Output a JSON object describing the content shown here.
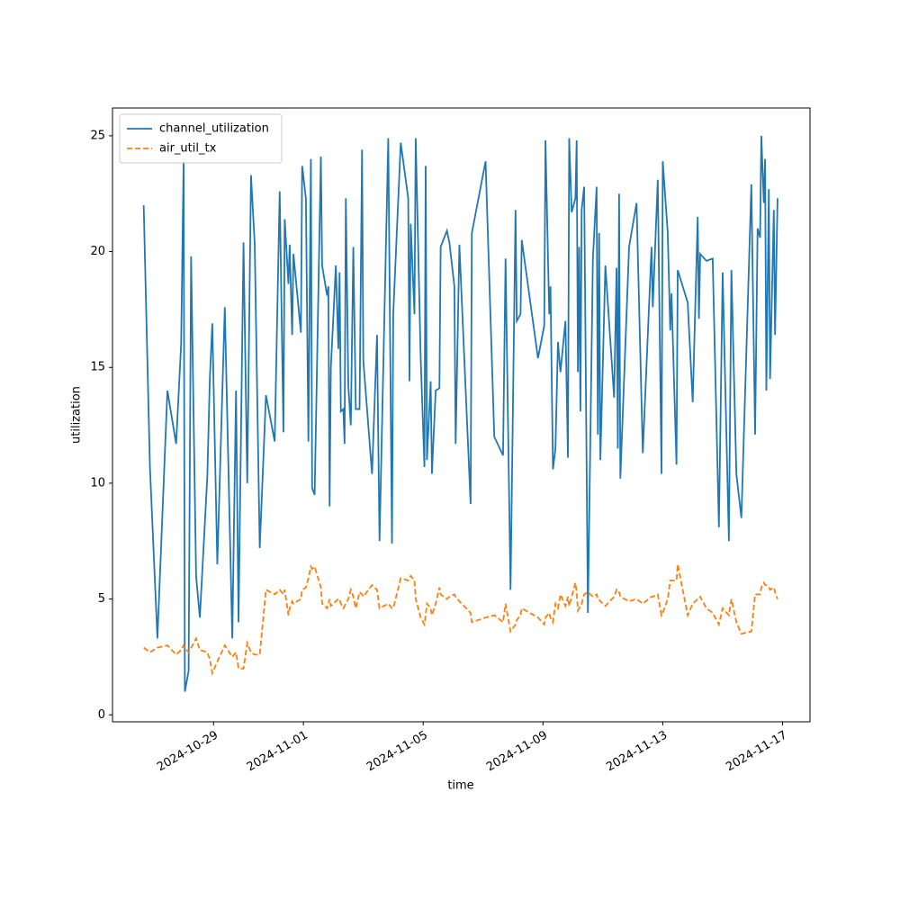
{
  "chart_data": {
    "type": "line",
    "xlabel": "time",
    "ylabel": "utilization",
    "xlim": [
      "2024-10-25T15:00",
      "2024-11-17T22:00"
    ],
    "xticks": [
      "2024-10-29",
      "2024-11-01",
      "2024-11-05",
      "2024-11-09",
      "2024-11-13",
      "2024-11-17"
    ],
    "ylim": [
      -0.3,
      26.2
    ],
    "yticks": [
      0,
      5,
      10,
      15,
      20,
      25
    ],
    "grid": false,
    "legend": "upper left",
    "series": [
      {
        "name": "channel_utilization",
        "color": "#1f77b4",
        "linestyle": "solid",
        "x": [
          "2024-10-26T16:00",
          "2024-10-26T21:00",
          "2024-10-27T03:00",
          "2024-10-27T11:00",
          "2024-10-27T18:00",
          "2024-10-27T22:00",
          "2024-10-28T00:00",
          "2024-10-28T01:00",
          "2024-10-28T04:00",
          "2024-10-28T06:00",
          "2024-10-28T10:00",
          "2024-10-28T13:00",
          "2024-10-28T19:00",
          "2024-10-28T21:00",
          "2024-10-28T23:00",
          "2024-10-29T03:00",
          "2024-10-29T09:00",
          "2024-10-29T15:00",
          "2024-10-29T18:00",
          "2024-10-29T20:00",
          "2024-10-30T00:00",
          "2024-10-30T03:00",
          "2024-10-30T06:00",
          "2024-10-30T09:00",
          "2024-10-30T13:00",
          "2024-10-30T18:00",
          "2024-10-31T01:00",
          "2024-10-31T05:00",
          "2024-10-31T08:00",
          "2024-10-31T09:00",
          "2024-10-31T12:00",
          "2024-10-31T13:00",
          "2024-10-31T15:00",
          "2024-10-31T16:00",
          "2024-10-31T22:00",
          "2024-10-31T23:00",
          "2024-11-01T02:00",
          "2024-11-01T04:00",
          "2024-11-01T06:00",
          "2024-11-01T07:00",
          "2024-11-01T09:00",
          "2024-11-01T14:00",
          "2024-11-01T15:00",
          "2024-11-01T19:00",
          "2024-11-01T20:00",
          "2024-11-01T21:00",
          "2024-11-01T22:00",
          "2024-11-02T02:00",
          "2024-11-02T04:00",
          "2024-11-02T05:00",
          "2024-11-02T06:00",
          "2024-11-02T08:00",
          "2024-11-02T09:00",
          "2024-11-02T10:00",
          "2024-11-02T12:00",
          "2024-11-02T14:00",
          "2024-11-02T16:00",
          "2024-11-02T18:00",
          "2024-11-02T21:00",
          "2024-11-02T23:00",
          "2024-11-03T00:00",
          "2024-11-03T07:00",
          "2024-11-03T11:00",
          "2024-11-03T13:00",
          "2024-11-03T20:00",
          "2024-11-03T23:00",
          "2024-11-04T00:00",
          "2024-11-04T06:00",
          "2024-11-04T12:00",
          "2024-11-04T13:00",
          "2024-11-04T14:00",
          "2024-11-04T17:00",
          "2024-11-04T18:00",
          "2024-11-04T22:00",
          "2024-11-05T01:00",
          "2024-11-05T02:00",
          "2024-11-05T03:00",
          "2024-11-05T06:00",
          "2024-11-05T07:00",
          "2024-11-05T10:00",
          "2024-11-05T13:00",
          "2024-11-05T14:00",
          "2024-11-05T19:00",
          "2024-11-05T21:00",
          "2024-11-06T01:00",
          "2024-11-06T02:00",
          "2024-11-06T05:00",
          "2024-11-06T14:00",
          "2024-11-06T15:00",
          "2024-11-07T02:00",
          "2024-11-07T09:00",
          "2024-11-07T16:00",
          "2024-11-07T18:00",
          "2024-11-07T22:00",
          "2024-11-08T02:00",
          "2024-11-08T03:00",
          "2024-11-08T06:00",
          "2024-11-08T07:00",
          "2024-11-08T20:00",
          "2024-11-09T01:00",
          "2024-11-09T02:00",
          "2024-11-09T05:00",
          "2024-11-09T06:00",
          "2024-11-09T08:00",
          "2024-11-09T10:00",
          "2024-11-09T12:00",
          "2024-11-09T14:00",
          "2024-11-09T18:00",
          "2024-11-09T20:00",
          "2024-11-09T21:00",
          "2024-11-09T23:00",
          "2024-11-10T02:00",
          "2024-11-10T03:00",
          "2024-11-10T04:00",
          "2024-11-10T05:00",
          "2024-11-10T06:00",
          "2024-11-10T07:00",
          "2024-11-10T09:00",
          "2024-11-10T12:00",
          "2024-11-10T16:00",
          "2024-11-10T19:00",
          "2024-11-10T20:00",
          "2024-11-10T21:00",
          "2024-11-10T22:00",
          "2024-11-11T02:00",
          "2024-11-11T09:00",
          "2024-11-11T11:00",
          "2024-11-11T12:00",
          "2024-11-11T13:00",
          "2024-11-11T14:00",
          "2024-11-11T21:00",
          "2024-11-12T03:00",
          "2024-11-12T08:00",
          "2024-11-12T15:00",
          "2024-11-12T16:00",
          "2024-11-12T20:00",
          "2024-11-12T23:00",
          "2024-11-13T00:00",
          "2024-11-13T04:00",
          "2024-11-13T06:00",
          "2024-11-13T07:00",
          "2024-11-13T11:00",
          "2024-11-13T12:00",
          "2024-11-13T20:00",
          "2024-11-14T00:00",
          "2024-11-14T04:00",
          "2024-11-14T05:00",
          "2024-11-14T06:00",
          "2024-11-14T11:00",
          "2024-11-14T16:00",
          "2024-11-14T21:00",
          "2024-11-15T00:00",
          "2024-11-15T05:00",
          "2024-11-15T07:00",
          "2024-11-15T11:00",
          "2024-11-15T15:00",
          "2024-11-15T23:00",
          "2024-11-16T02:00",
          "2024-11-16T04:00",
          "2024-11-16T06:00",
          "2024-11-16T07:00",
          "2024-11-16T09:00",
          "2024-11-16T10:00",
          "2024-11-16T11:00",
          "2024-11-16T13:00",
          "2024-11-16T14:00",
          "2024-11-16T17:00",
          "2024-11-16T18:00",
          "2024-11-16T20:00"
        ],
        "values": [
          22,
          10.7,
          3.3,
          14,
          11.7,
          16,
          23.9,
          1,
          1.9,
          19.8,
          6,
          4.2,
          10.3,
          14.5,
          16.9,
          6.5,
          17.6,
          3.3,
          14,
          4,
          20.4,
          10,
          23.3,
          20.3,
          7.2,
          13.8,
          11.8,
          22.6,
          12.2,
          21.4,
          18.6,
          20.3,
          16.4,
          19.9,
          16.5,
          23.7,
          22.3,
          11.8,
          24,
          9.8,
          9.5,
          24.1,
          19.4,
          18.1,
          18.5,
          9,
          15,
          19.4,
          15.8,
          19.1,
          13.1,
          13.2,
          11.7,
          22.3,
          14.2,
          12.5,
          20.2,
          13.2,
          13.2,
          24.4,
          15.3,
          10.4,
          16.4,
          7.5,
          24.9,
          7.4,
          17.3,
          24.7,
          22.3,
          14.4,
          21.2,
          17.3,
          24.9,
          15.4,
          10.7,
          23.7,
          11,
          14.4,
          10.4,
          14,
          14.1,
          20.2,
          20.9,
          20.4,
          18.5,
          11.7,
          20.3,
          9.1,
          20.8,
          23.9,
          12,
          11.2,
          19.7,
          5.4,
          21.8,
          17,
          17.3,
          20.5,
          15.4,
          16.8,
          24.8,
          17.3,
          18.5,
          10.6,
          11.5,
          16.1,
          14.8,
          17,
          11.1,
          24.9,
          21.7,
          22.3,
          24.8,
          14.8,
          20.2,
          13.1,
          21.8,
          22.8,
          4.4,
          19.7,
          22.8,
          12.1,
          20.8,
          11,
          19.4,
          13.7,
          19.3,
          11.5,
          22.5,
          10.2,
          20.2,
          22.1,
          11.3,
          20.2,
          17.6,
          23.1,
          10.4,
          23.9,
          20.8,
          16.6,
          18.2,
          10.8,
          19.2,
          17.8,
          13.5,
          21.5,
          17.1,
          19.9,
          19.6,
          19.7,
          8.1,
          19.1,
          7.5,
          19.2,
          10.4,
          8.5,
          22.9,
          12.1,
          21,
          20.6,
          25,
          22.1,
          24,
          14,
          22.7,
          14.5,
          21.8,
          16.4,
          22.3
        ]
      },
      {
        "name": "air_util_tx",
        "color": "#ff7f0e",
        "linestyle": "dashed",
        "x": [
          "2024-10-26T16:00",
          "2024-10-26T21:00",
          "2024-10-27T03:00",
          "2024-10-27T11:00",
          "2024-10-27T18:00",
          "2024-10-27T22:00",
          "2024-10-28T00:00",
          "2024-10-28T01:00",
          "2024-10-28T04:00",
          "2024-10-28T06:00",
          "2024-10-28T10:00",
          "2024-10-28T13:00",
          "2024-10-28T19:00",
          "2024-10-28T21:00",
          "2024-10-28T23:00",
          "2024-10-29T03:00",
          "2024-10-29T09:00",
          "2024-10-29T15:00",
          "2024-10-29T18:00",
          "2024-10-29T20:00",
          "2024-10-30T00:00",
          "2024-10-30T03:00",
          "2024-10-30T06:00",
          "2024-10-30T09:00",
          "2024-10-30T13:00",
          "2024-10-30T18:00",
          "2024-10-31T01:00",
          "2024-10-31T05:00",
          "2024-10-31T08:00",
          "2024-10-31T09:00",
          "2024-10-31T12:00",
          "2024-10-31T13:00",
          "2024-10-31T15:00",
          "2024-10-31T16:00",
          "2024-10-31T22:00",
          "2024-10-31T23:00",
          "2024-11-01T02:00",
          "2024-11-01T04:00",
          "2024-11-01T06:00",
          "2024-11-01T07:00",
          "2024-11-01T09:00",
          "2024-11-01T14:00",
          "2024-11-01T15:00",
          "2024-11-01T19:00",
          "2024-11-01T20:00",
          "2024-11-01T21:00",
          "2024-11-01T22:00",
          "2024-11-02T02:00",
          "2024-11-02T04:00",
          "2024-11-02T05:00",
          "2024-11-02T06:00",
          "2024-11-02T08:00",
          "2024-11-02T09:00",
          "2024-11-02T10:00",
          "2024-11-02T12:00",
          "2024-11-02T14:00",
          "2024-11-02T16:00",
          "2024-11-02T18:00",
          "2024-11-02T21:00",
          "2024-11-02T23:00",
          "2024-11-03T00:00",
          "2024-11-03T07:00",
          "2024-11-03T11:00",
          "2024-11-03T13:00",
          "2024-11-03T20:00",
          "2024-11-03T23:00",
          "2024-11-04T00:00",
          "2024-11-04T06:00",
          "2024-11-04T12:00",
          "2024-11-04T13:00",
          "2024-11-04T14:00",
          "2024-11-04T17:00",
          "2024-11-04T18:00",
          "2024-11-04T22:00",
          "2024-11-05T01:00",
          "2024-11-05T02:00",
          "2024-11-05T03:00",
          "2024-11-05T06:00",
          "2024-11-05T07:00",
          "2024-11-05T10:00",
          "2024-11-05T13:00",
          "2024-11-05T14:00",
          "2024-11-05T19:00",
          "2024-11-05T21:00",
          "2024-11-06T01:00",
          "2024-11-06T02:00",
          "2024-11-06T05:00",
          "2024-11-06T14:00",
          "2024-11-06T15:00",
          "2024-11-07T02:00",
          "2024-11-07T09:00",
          "2024-11-07T16:00",
          "2024-11-07T18:00",
          "2024-11-07T22:00",
          "2024-11-08T02:00",
          "2024-11-08T03:00",
          "2024-11-08T06:00",
          "2024-11-08T07:00",
          "2024-11-08T20:00",
          "2024-11-09T01:00",
          "2024-11-09T02:00",
          "2024-11-09T05:00",
          "2024-11-09T06:00",
          "2024-11-09T08:00",
          "2024-11-09T10:00",
          "2024-11-09T12:00",
          "2024-11-09T14:00",
          "2024-11-09T18:00",
          "2024-11-09T20:00",
          "2024-11-09T21:00",
          "2024-11-09T23:00",
          "2024-11-10T02:00",
          "2024-11-10T03:00",
          "2024-11-10T04:00",
          "2024-11-10T05:00",
          "2024-11-10T06:00",
          "2024-11-10T07:00",
          "2024-11-10T09:00",
          "2024-11-10T12:00",
          "2024-11-10T16:00",
          "2024-11-10T19:00",
          "2024-11-10T20:00",
          "2024-11-10T21:00",
          "2024-11-10T22:00",
          "2024-11-11T02:00",
          "2024-11-11T09:00",
          "2024-11-11T11:00",
          "2024-11-11T12:00",
          "2024-11-11T13:00",
          "2024-11-11T14:00",
          "2024-11-11T21:00",
          "2024-11-12T03:00",
          "2024-11-12T08:00",
          "2024-11-12T15:00",
          "2024-11-12T16:00",
          "2024-11-12T20:00",
          "2024-11-12T23:00",
          "2024-11-13T00:00",
          "2024-11-13T04:00",
          "2024-11-13T06:00",
          "2024-11-13T07:00",
          "2024-11-13T11:00",
          "2024-11-13T12:00",
          "2024-11-13T20:00",
          "2024-11-14T00:00",
          "2024-11-14T04:00",
          "2024-11-14T05:00",
          "2024-11-14T06:00",
          "2024-11-14T11:00",
          "2024-11-14T16:00",
          "2024-11-14T21:00",
          "2024-11-15T00:00",
          "2024-11-15T05:00",
          "2024-11-15T07:00",
          "2024-11-15T11:00",
          "2024-11-15T15:00",
          "2024-11-15T23:00",
          "2024-11-16T02:00",
          "2024-11-16T04:00",
          "2024-11-16T06:00",
          "2024-11-16T07:00",
          "2024-11-16T09:00",
          "2024-11-16T10:00",
          "2024-11-16T11:00",
          "2024-11-16T13:00",
          "2024-11-16T14:00",
          "2024-11-16T17:00",
          "2024-11-16T18:00",
          "2024-11-16T20:00"
        ],
        "values": [
          2.9,
          2.7,
          2.9,
          3.0,
          2.6,
          2.8,
          3.0,
          2.9,
          2.7,
          2.9,
          3.3,
          2.8,
          2.7,
          2.4,
          1.8,
          2.3,
          3.0,
          2.5,
          2.7,
          2.0,
          2.0,
          3.1,
          2.7,
          2.6,
          2.6,
          5.4,
          5.2,
          5.4,
          5.2,
          5.4,
          4.3,
          4.6,
          4.9,
          4.8,
          5.0,
          5.4,
          5.5,
          5.9,
          6.4,
          6.3,
          6.4,
          5.5,
          4.8,
          4.6,
          4.8,
          5.0,
          4.7,
          4.9,
          5.0,
          5.0,
          4.8,
          4.6,
          4.7,
          4.8,
          5.0,
          5.4,
          5.1,
          4.6,
          5.3,
          5.2,
          5.1,
          5.6,
          5.4,
          4.6,
          4.8,
          4.6,
          4.6,
          5.9,
          5.8,
          5.9,
          6.0,
          5.8,
          5.0,
          4.2,
          3.9,
          4.3,
          4.8,
          4.6,
          4.3,
          4.8,
          5.5,
          5.2,
          5.0,
          5.1,
          5.2,
          5.1,
          4.9,
          4.4,
          4.0,
          4.2,
          4.3,
          4.0,
          4.8,
          3.6,
          3.9,
          4.1,
          4.3,
          4.6,
          4.2,
          3.9,
          4.2,
          4.4,
          4.2,
          4.0,
          4.8,
          4.6,
          5.2,
          4.7,
          5.1,
          4.7,
          5.1,
          5.7,
          5.3,
          4.5,
          4.6,
          4.7,
          4.8,
          5.2,
          5.3,
          5.1,
          5.2,
          5.0,
          5.0,
          4.9,
          4.7,
          5.1,
          5.4,
          5.3,
          5.3,
          5.1,
          4.9,
          5.0,
          4.8,
          5.1,
          5.1,
          5.2,
          4.3,
          4.4,
          5.0,
          5.8,
          5.8,
          5.8,
          6.5,
          4.3,
          4.8,
          5.0,
          5.0,
          5.1,
          4.6,
          4.4,
          3.9,
          4.6,
          4.3,
          5.0,
          4.0,
          3.5,
          3.6,
          5.2,
          5.2,
          5.2,
          5.5,
          5.7,
          5.6,
          5.6,
          5.5,
          5.4,
          5.5,
          5.3,
          5.0
        ]
      }
    ]
  }
}
